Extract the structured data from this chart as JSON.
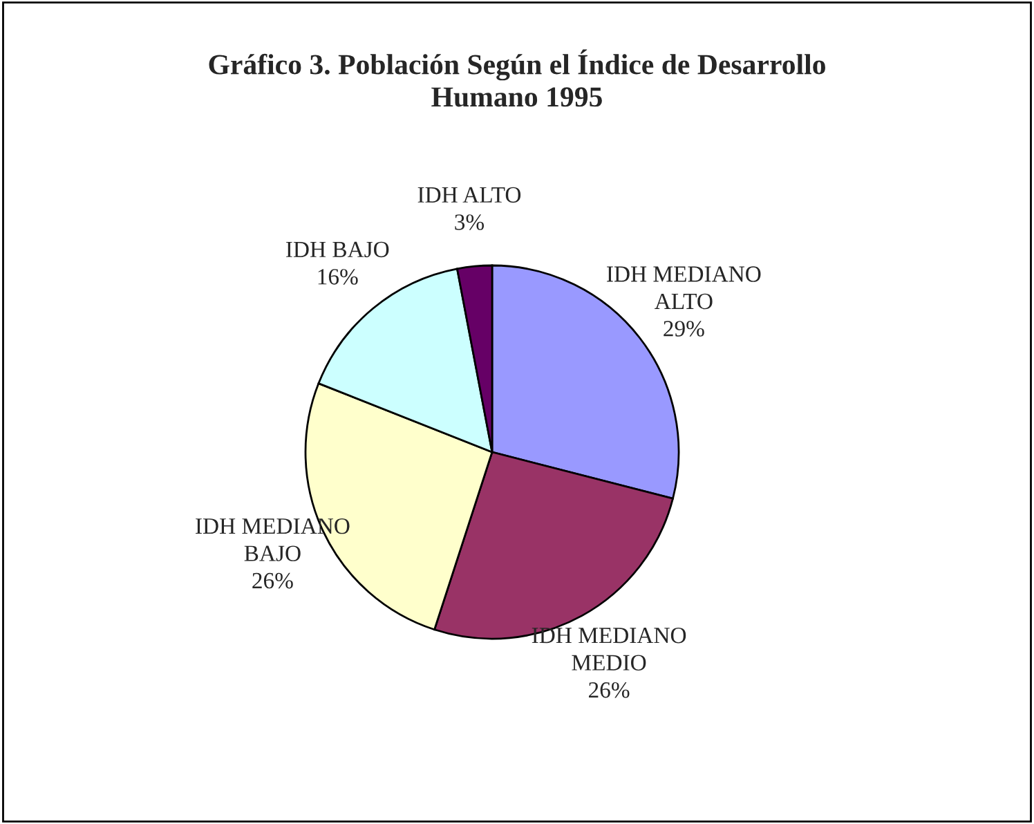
{
  "chart_data": {
    "type": "pie",
    "title": "Gráfico 3. Población Según el Índice de Desarrollo\nHumano 1995",
    "categories": [
      "IDH MEDIANO\nALTO",
      "IDH MEDIANO\nMEDIO",
      "IDH MEDIANO\nBAJO",
      "IDH BAJO",
      "IDH ALTO"
    ],
    "values": [
      29,
      26,
      26,
      16,
      3
    ],
    "value_labels": [
      "29%",
      "26%",
      "26%",
      "16%",
      "3%"
    ],
    "colors": [
      "#9999ff",
      "#993366",
      "#ffffcc",
      "#ccffff",
      "#660066"
    ],
    "legend": false
  }
}
